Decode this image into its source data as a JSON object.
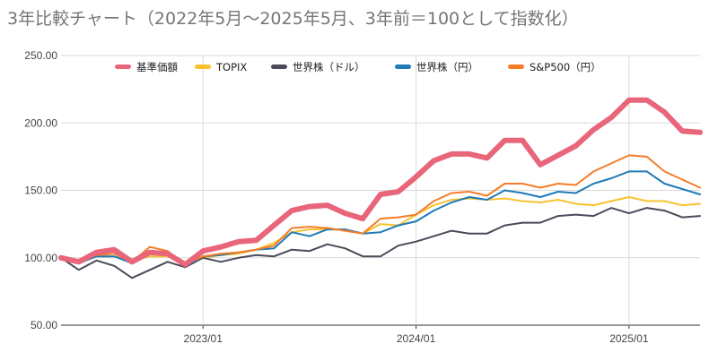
{
  "chart_data": {
    "type": "line",
    "title": "3年比較チャート（2022年5月〜2025年5月、3年前＝100として指数化）",
    "xlabel": "",
    "ylabel": "",
    "ylim": [
      50,
      250
    ],
    "yticks": [
      "250.00",
      "200.00",
      "150.00",
      "100.00",
      "50.00"
    ],
    "ytick_values": [
      250,
      200,
      150,
      100,
      50
    ],
    "x": [
      "2022-05",
      "2022-06",
      "2022-07",
      "2022-08",
      "2022-09",
      "2022-10",
      "2022-11",
      "2022-12",
      "2023-01",
      "2023-02",
      "2023-03",
      "2023-04",
      "2023-05",
      "2023-06",
      "2023-07",
      "2023-08",
      "2023-09",
      "2023-10",
      "2023-11",
      "2023-12",
      "2024-01",
      "2024-02",
      "2024-03",
      "2024-04",
      "2024-05",
      "2024-06",
      "2024-07",
      "2024-08",
      "2024-09",
      "2024-10",
      "2024-11",
      "2024-12",
      "2025-01",
      "2025-02",
      "2025-03",
      "2025-04",
      "2025-05"
    ],
    "xticks": [
      {
        "label": "2023/01",
        "x": "2023-01"
      },
      {
        "label": "2024/01",
        "x": "2024-01"
      },
      {
        "label": "2025/01",
        "x": "2025-01"
      }
    ],
    "grid": "vertical lines at year ticks, horizontal lines at y ticks",
    "legend_position": "top",
    "series": [
      {
        "name": "基準価額",
        "color": "#e8657a",
        "emphasis": true,
        "values": [
          100,
          97,
          104,
          106,
          97,
          104,
          103,
          95,
          105,
          108,
          112,
          113,
          124,
          135,
          138,
          139,
          133,
          129,
          147,
          149,
          160,
          172,
          177,
          177,
          174,
          187,
          187,
          169,
          176,
          183,
          195,
          204,
          217,
          217,
          208,
          194,
          193
        ]
      },
      {
        "name": "TOPIX",
        "color": "#f9c22e",
        "emphasis": false,
        "values": [
          100,
          98,
          101,
          101,
          98,
          101,
          101,
          96,
          100,
          102,
          103,
          106,
          111,
          119,
          121,
          121,
          121,
          118,
          125,
          124,
          132,
          139,
          143,
          144,
          143,
          144,
          142,
          141,
          143,
          140,
          139,
          142,
          145,
          142,
          142,
          139,
          140
        ]
      },
      {
        "name": "世界株（ドル）",
        "color": "#4a4a5a",
        "emphasis": false,
        "values": [
          100,
          91,
          98,
          94,
          85,
          91,
          97,
          93,
          100,
          97,
          100,
          102,
          101,
          106,
          105,
          110,
          107,
          101,
          101,
          109,
          112,
          116,
          120,
          118,
          118,
          124,
          126,
          126,
          131,
          132,
          131,
          137,
          133,
          137,
          135,
          130,
          131
        ]
      },
      {
        "name": "世界株（円）",
        "color": "#1f7ab8",
        "emphasis": false,
        "values": [
          100,
          96,
          101,
          101,
          96,
          104,
          103,
          94,
          101,
          102,
          104,
          106,
          107,
          119,
          116,
          121,
          121,
          118,
          119,
          124,
          127,
          135,
          141,
          145,
          143,
          150,
          148,
          145,
          149,
          148,
          155,
          159,
          164,
          164,
          155,
          151,
          147
        ]
      },
      {
        "name": "S&P500（円）",
        "color": "#f57c28",
        "emphasis": false,
        "values": [
          100,
          97,
          102,
          103,
          97,
          108,
          105,
          95,
          101,
          103,
          104,
          106,
          109,
          122,
          123,
          122,
          120,
          118,
          129,
          130,
          132,
          142,
          148,
          149,
          146,
          155,
          155,
          152,
          155,
          154,
          164,
          170,
          176,
          175,
          164,
          158,
          152
        ]
      }
    ]
  }
}
